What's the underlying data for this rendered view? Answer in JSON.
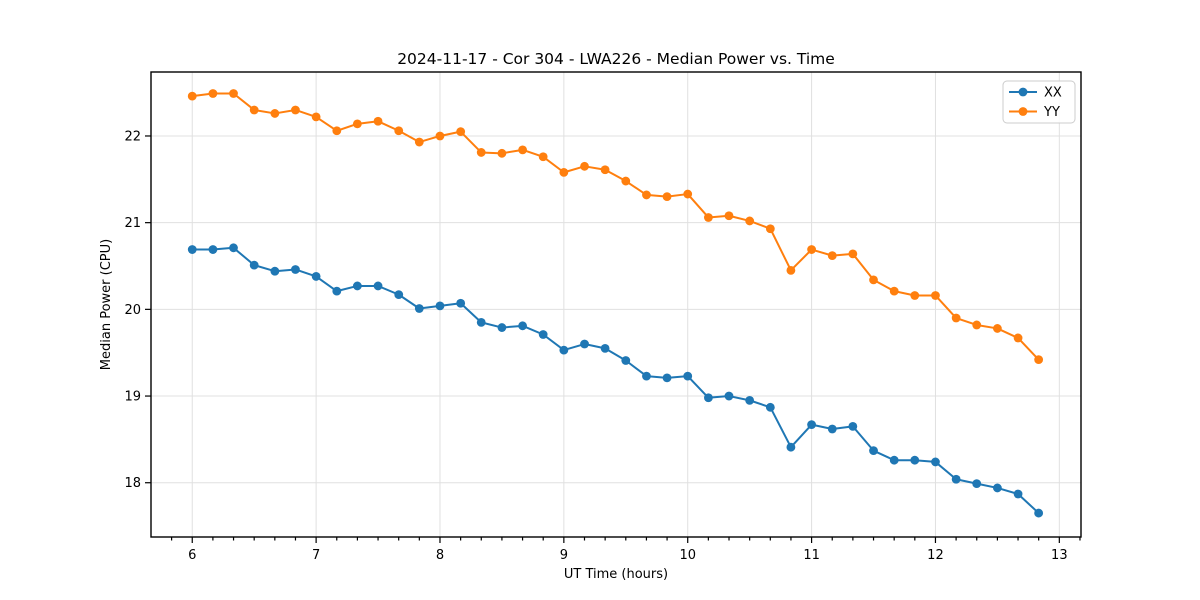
{
  "chart_data": {
    "type": "line",
    "title": "2024-11-17 - Cor 304 - LWA226 - Median Power vs. Time",
    "xlabel": "UT Time (hours)",
    "ylabel": "Median Power (CPU)",
    "xlim": [
      5.667,
      13.175
    ],
    "ylim": [
      17.374,
      22.738
    ],
    "xticks": [
      6,
      7,
      8,
      9,
      10,
      11,
      12,
      13
    ],
    "yticks": [
      18,
      19,
      20,
      21,
      22
    ],
    "x_minor_step": 0.166667,
    "grid": true,
    "legend_position": "upper right",
    "background_color": "#ffffff",
    "grid_color": "#e0e0e0",
    "x": [
      6.0,
      6.167,
      6.333,
      6.5,
      6.667,
      6.833,
      7.0,
      7.167,
      7.333,
      7.5,
      7.667,
      7.833,
      8.0,
      8.167,
      8.333,
      8.5,
      8.667,
      8.833,
      9.0,
      9.167,
      9.333,
      9.5,
      9.667,
      9.833,
      10.0,
      10.167,
      10.333,
      10.5,
      10.667,
      10.833,
      11.0,
      11.167,
      11.333,
      11.5,
      11.667,
      11.833,
      12.0,
      12.167,
      12.333,
      12.5,
      12.667,
      12.833
    ],
    "series": [
      {
        "name": "XX",
        "color": "#1f77b4",
        "values": [
          20.69,
          20.69,
          20.71,
          20.51,
          20.44,
          20.46,
          20.38,
          20.21,
          20.27,
          20.27,
          20.17,
          20.01,
          20.04,
          20.07,
          19.85,
          19.79,
          19.81,
          19.71,
          19.53,
          19.6,
          19.55,
          19.41,
          19.23,
          19.21,
          19.23,
          18.98,
          19.0,
          18.95,
          18.87,
          18.41,
          18.67,
          18.62,
          18.65,
          18.37,
          18.26,
          18.26,
          18.24,
          18.04,
          17.99,
          17.94,
          17.87,
          17.65
        ]
      },
      {
        "name": "YY",
        "color": "#ff7f0e",
        "values": [
          22.46,
          22.49,
          22.49,
          22.3,
          22.26,
          22.3,
          22.22,
          22.06,
          22.14,
          22.17,
          22.06,
          21.93,
          22.0,
          22.05,
          21.81,
          21.8,
          21.84,
          21.76,
          21.58,
          21.65,
          21.61,
          21.48,
          21.32,
          21.3,
          21.33,
          21.06,
          21.08,
          21.02,
          20.93,
          20.45,
          20.69,
          20.62,
          20.64,
          20.34,
          20.21,
          20.16,
          20.16,
          19.9,
          19.82,
          19.78,
          19.67,
          19.42
        ]
      }
    ]
  }
}
